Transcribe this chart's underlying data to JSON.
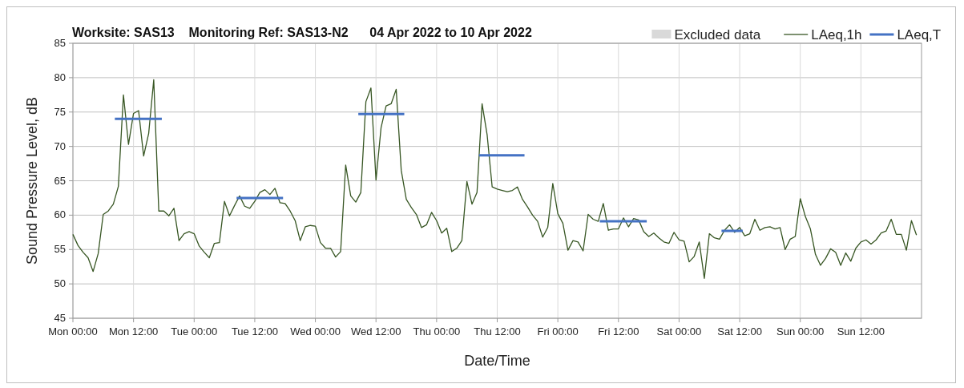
{
  "chart_data": {
    "type": "line",
    "title": "Worksite: SAS13    Monitoring Ref: SAS13-N2      04 Apr 2022 to 10 Apr 2022",
    "xlabel": "Date/Time",
    "ylabel": "Sound Pressure Level, dB",
    "xlim": [
      "2022-04-04T00:00",
      "2022-04-11T00:00"
    ],
    "ylim": [
      45,
      85
    ],
    "xticks": [
      {
        "value": "2022-04-04T00:00",
        "label": "Mon 00:00"
      },
      {
        "value": "2022-04-04T12:00",
        "label": "Mon 12:00"
      },
      {
        "value": "2022-04-05T00:00",
        "label": "Tue 00:00"
      },
      {
        "value": "2022-04-05T12:00",
        "label": "Tue 12:00"
      },
      {
        "value": "2022-04-06T00:00",
        "label": "Wed 00:00"
      },
      {
        "value": "2022-04-06T12:00",
        "label": "Wed 12:00"
      },
      {
        "value": "2022-04-07T00:00",
        "label": "Thu 00:00"
      },
      {
        "value": "2022-04-07T12:00",
        "label": "Thu 12:00"
      },
      {
        "value": "2022-04-08T00:00",
        "label": "Fri 00:00"
      },
      {
        "value": "2022-04-08T12:00",
        "label": "Fri 12:00"
      },
      {
        "value": "2022-04-09T00:00",
        "label": "Sat 00:00"
      },
      {
        "value": "2022-04-09T12:00",
        "label": "Sat 12:00"
      },
      {
        "value": "2022-04-10T00:00",
        "label": "Sun 00:00"
      },
      {
        "value": "2022-04-10T12:00",
        "label": "Sun 12:00"
      }
    ],
    "yticks": [
      45,
      50,
      55,
      60,
      65,
      70,
      75,
      80,
      85
    ],
    "grid": true,
    "legend": "top right",
    "series": [
      {
        "name": "Excluded data",
        "type": "area",
        "color": "#d9d9d9"
      },
      {
        "name": "LAeq,1h",
        "color": "#375623",
        "x": [
          "2022-04-04T00:00",
          "2022-04-04T01:00",
          "2022-04-04T02:00",
          "2022-04-04T03:00",
          "2022-04-04T04:00",
          "2022-04-04T05:00",
          "2022-04-04T06:00",
          "2022-04-04T07:00",
          "2022-04-04T08:00",
          "2022-04-04T09:00",
          "2022-04-04T10:00",
          "2022-04-04T11:00",
          "2022-04-04T12:00",
          "2022-04-04T13:00",
          "2022-04-04T14:00",
          "2022-04-04T15:00",
          "2022-04-04T16:00",
          "2022-04-04T17:00",
          "2022-04-04T18:00",
          "2022-04-04T19:00",
          "2022-04-04T20:00",
          "2022-04-04T21:00",
          "2022-04-04T22:00",
          "2022-04-04T23:00",
          "2022-04-05T00:00",
          "2022-04-05T01:00",
          "2022-04-05T02:00",
          "2022-04-05T03:00",
          "2022-04-05T04:00",
          "2022-04-05T05:00",
          "2022-04-05T06:00",
          "2022-04-05T07:00",
          "2022-04-05T08:00",
          "2022-04-05T09:00",
          "2022-04-05T10:00",
          "2022-04-05T11:00",
          "2022-04-05T12:00",
          "2022-04-05T13:00",
          "2022-04-05T14:00",
          "2022-04-05T15:00",
          "2022-04-05T16:00",
          "2022-04-05T17:00",
          "2022-04-05T18:00",
          "2022-04-05T19:00",
          "2022-04-05T20:00",
          "2022-04-05T21:00",
          "2022-04-05T22:00",
          "2022-04-05T23:00",
          "2022-04-06T00:00",
          "2022-04-06T01:00",
          "2022-04-06T02:00",
          "2022-04-06T03:00",
          "2022-04-06T04:00",
          "2022-04-06T05:00",
          "2022-04-06T06:00",
          "2022-04-06T07:00",
          "2022-04-06T08:00",
          "2022-04-06T09:00",
          "2022-04-06T10:00",
          "2022-04-06T11:00",
          "2022-04-06T12:00",
          "2022-04-06T13:00",
          "2022-04-06T14:00",
          "2022-04-06T15:00",
          "2022-04-06T16:00",
          "2022-04-06T17:00",
          "2022-04-06T18:00",
          "2022-04-06T19:00",
          "2022-04-06T20:00",
          "2022-04-06T21:00",
          "2022-04-06T22:00",
          "2022-04-06T23:00",
          "2022-04-07T00:00",
          "2022-04-07T01:00",
          "2022-04-07T02:00",
          "2022-04-07T03:00",
          "2022-04-07T04:00",
          "2022-04-07T05:00",
          "2022-04-07T06:00",
          "2022-04-07T07:00",
          "2022-04-07T08:00",
          "2022-04-07T09:00",
          "2022-04-07T10:00",
          "2022-04-07T11:00",
          "2022-04-07T12:00",
          "2022-04-07T13:00",
          "2022-04-07T14:00",
          "2022-04-07T15:00",
          "2022-04-07T16:00",
          "2022-04-07T17:00",
          "2022-04-07T18:00",
          "2022-04-07T19:00",
          "2022-04-07T20:00",
          "2022-04-07T21:00",
          "2022-04-07T22:00",
          "2022-04-07T23:00",
          "2022-04-08T00:00",
          "2022-04-08T01:00",
          "2022-04-08T02:00",
          "2022-04-08T03:00",
          "2022-04-08T04:00",
          "2022-04-08T05:00",
          "2022-04-08T06:00",
          "2022-04-08T07:00",
          "2022-04-08T08:00",
          "2022-04-08T09:00",
          "2022-04-08T10:00",
          "2022-04-08T11:00",
          "2022-04-08T12:00",
          "2022-04-08T13:00",
          "2022-04-08T14:00",
          "2022-04-08T15:00",
          "2022-04-08T16:00",
          "2022-04-08T17:00",
          "2022-04-08T18:00",
          "2022-04-08T19:00",
          "2022-04-08T20:00",
          "2022-04-08T21:00",
          "2022-04-08T22:00",
          "2022-04-08T23:00",
          "2022-04-09T00:00",
          "2022-04-09T01:00",
          "2022-04-09T02:00",
          "2022-04-09T03:00",
          "2022-04-09T04:00",
          "2022-04-09T05:00",
          "2022-04-09T06:00",
          "2022-04-09T07:00",
          "2022-04-09T08:00",
          "2022-04-09T09:00",
          "2022-04-09T10:00",
          "2022-04-09T11:00",
          "2022-04-09T12:00",
          "2022-04-09T13:00",
          "2022-04-09T14:00",
          "2022-04-09T15:00",
          "2022-04-09T16:00",
          "2022-04-09T17:00",
          "2022-04-09T18:00",
          "2022-04-09T19:00",
          "2022-04-09T20:00",
          "2022-04-09T21:00",
          "2022-04-09T22:00",
          "2022-04-09T23:00",
          "2022-04-10T00:00",
          "2022-04-10T01:00",
          "2022-04-10T02:00",
          "2022-04-10T03:00",
          "2022-04-10T04:00",
          "2022-04-10T05:00",
          "2022-04-10T06:00",
          "2022-04-10T07:00",
          "2022-04-10T08:00",
          "2022-04-10T09:00",
          "2022-04-10T10:00",
          "2022-04-10T11:00",
          "2022-04-10T12:00",
          "2022-04-10T13:00",
          "2022-04-10T14:00",
          "2022-04-10T15:00",
          "2022-04-10T16:00",
          "2022-04-10T17:00",
          "2022-04-10T18:00",
          "2022-04-10T19:00",
          "2022-04-10T20:00",
          "2022-04-10T21:00",
          "2022-04-10T22:00",
          "2022-04-10T23:00"
        ],
        "values": [
          57.2,
          55.6,
          54.6,
          53.8,
          51.8,
          54.4,
          60.1,
          60.6,
          61.6,
          64.2,
          77.5,
          70.3,
          74.8,
          75.2,
          68.6,
          71.9,
          79.7,
          60.6,
          60.6,
          59.9,
          61.0,
          56.3,
          57.3,
          57.6,
          57.3,
          55.5,
          54.6,
          53.8,
          55.9,
          56.0,
          62.0,
          59.9,
          61.4,
          62.8,
          61.3,
          61.0,
          62.0,
          63.3,
          63.7,
          63.0,
          63.9,
          61.8,
          61.7,
          60.6,
          59.2,
          56.3,
          58.3,
          58.5,
          58.4,
          56.0,
          55.2,
          55.2,
          53.9,
          54.7,
          67.3,
          62.8,
          61.9,
          63.3,
          76.5,
          78.5,
          65.1,
          72.7,
          75.9,
          76.2,
          78.3,
          66.5,
          62.3,
          61.1,
          60.1,
          58.2,
          58.6,
          60.4,
          59.2,
          57.4,
          58.1,
          54.7,
          55.2,
          56.3,
          64.9,
          61.6,
          63.3,
          76.2,
          71.7,
          64.1,
          63.8,
          63.6,
          63.4,
          63.6,
          64.1,
          62.3,
          61.2,
          60.0,
          59.1,
          56.8,
          58.2,
          64.6,
          60.2,
          58.8,
          54.9,
          56.3,
          56.1,
          54.8,
          60.1,
          59.4,
          59.1,
          61.7,
          57.8,
          58.0,
          58.0,
          59.6,
          58.3,
          59.5,
          59.3,
          57.6,
          56.9,
          57.4,
          56.7,
          56.1,
          55.9,
          57.5,
          56.4,
          56.2,
          53.2,
          54.0,
          56.1,
          50.8,
          57.3,
          56.7,
          56.5,
          57.8,
          58.6,
          57.5,
          58.2,
          57.0,
          57.3,
          59.4,
          57.8,
          58.2,
          58.3,
          58.0,
          58.2,
          55.0,
          56.5,
          56.9,
          62.4,
          59.8,
          58.0,
          54.3,
          52.7,
          53.7,
          55.1,
          54.6,
          52.7,
          54.5,
          53.3,
          55.2,
          56.1,
          56.4,
          55.8,
          56.4,
          57.4,
          57.7,
          59.4,
          57.2,
          57.2,
          54.9,
          59.2,
          57.1
        ]
      },
      {
        "name": "LAeq,T",
        "color": "#4472c4",
        "x": [
          "2022-04-04T08:18",
          "2022-04-04T17:36",
          "2022-04-05T01:00",
          "2022-04-05T08:24",
          "2022-04-05T17:36",
          "2022-04-06T01:00",
          "2022-04-06T08:30",
          "2022-04-06T17:36",
          "2022-04-07T01:00",
          "2022-04-07T08:24",
          "2022-04-07T17:24",
          "2022-04-08T01:00",
          "2022-04-08T08:18",
          "2022-04-08T17:36",
          "2022-04-09T01:00",
          "2022-04-09T08:24",
          "2022-04-09T12:36"
        ],
        "values": [
          74.0,
          74.0,
          null,
          62.5,
          62.5,
          null,
          74.7,
          74.7,
          null,
          68.7,
          68.7,
          null,
          59.1,
          59.1,
          null,
          57.7,
          57.7
        ]
      }
    ]
  }
}
